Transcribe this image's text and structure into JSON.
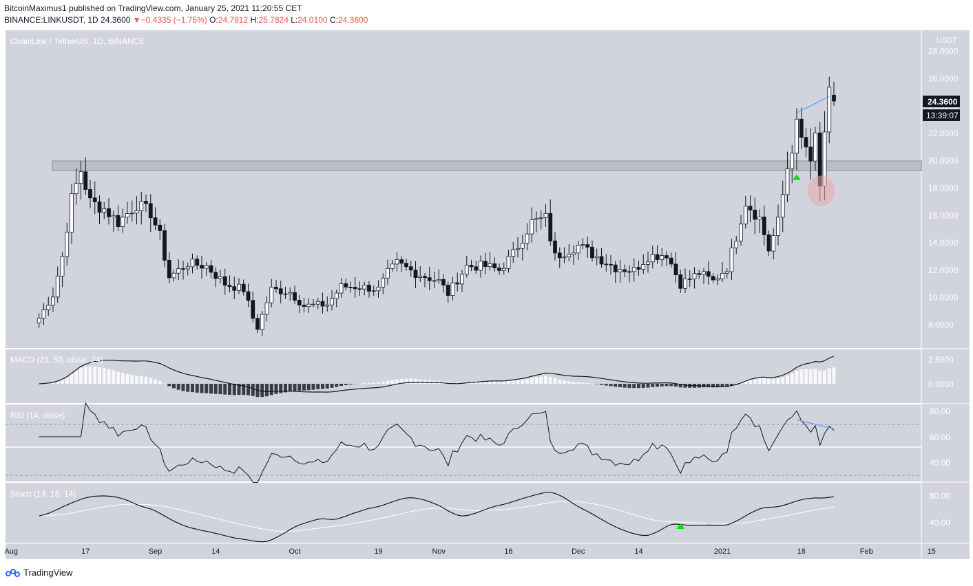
{
  "header": {
    "author": "BitcoinMaximus1",
    "published_text": "published on TradingView.com, January 25, 2021 11:20:55 CET",
    "symbol": "BINANCE:LINKUSDT, 1D",
    "last": "24.3600",
    "change_arrow": "▼",
    "change": "−0.4335 (−1.75%)",
    "o_label": "O:",
    "o_value": "24.7912",
    "h_label": "H:",
    "h_value": "25.7824",
    "l_label": "L:",
    "l_value": "24.0100",
    "c_label": "C:",
    "c_value": "24.3600"
  },
  "main_pane": {
    "title": "ChainLink / TetherUS, 1D, BINANCE",
    "currency": "USDT",
    "price_labels": [
      "28.0000",
      "26.0000",
      "24.0000",
      "22.0000",
      "20.0000",
      "18.0000",
      "16.0000",
      "14.0000",
      "12.0000",
      "10.0000",
      "8.0000"
    ],
    "last_price_label": "24.3600",
    "countdown_label": "13:39:07"
  },
  "macd_pane": {
    "title": "MACD (21, 50, close, 24)",
    "axis_labels": [
      "2.5000",
      "0.0000"
    ]
  },
  "rsi_pane": {
    "title": "RSI (14, close)",
    "axis_labels": [
      "80.00",
      "60.00",
      "40.00"
    ]
  },
  "stoch_pane": {
    "title": "Stoch (14, 18, 14)",
    "axis_labels": [
      "80.00",
      "40.00"
    ]
  },
  "time_axis": {
    "labels": [
      "Aug",
      "17",
      "Sep",
      "14",
      "Oct",
      "19",
      "Nov",
      "16",
      "Dec",
      "14",
      "2021",
      "18",
      "Feb",
      "15"
    ]
  },
  "footer": {
    "brand": "TradingView"
  },
  "colors": {
    "pane_bg": "#d1d4dc",
    "up": "#ffffff",
    "down": "#131722",
    "trendline": "#5b9cf6",
    "signal": "#00e600",
    "highlight": "#e8a8a8"
  },
  "chart_data": {
    "type": "candlestick",
    "title": "ChainLink / TetherUS, 1D, BINANCE",
    "y_unit": "USDT",
    "ylim": [
      7,
      29
    ],
    "anchors": [
      {
        "date": "2020-08-07",
        "close": 8.5
      },
      {
        "date": "2020-08-10",
        "close": 10.2
      },
      {
        "date": "2020-08-12",
        "close": 13.0
      },
      {
        "date": "2020-08-14",
        "close": 17.2
      },
      {
        "date": "2020-08-16",
        "close": 19.3
      },
      {
        "date": "2020-08-18",
        "close": 17.0
      },
      {
        "date": "2020-08-21",
        "close": 16.5
      },
      {
        "date": "2020-08-24",
        "close": 15.5
      },
      {
        "date": "2020-08-28",
        "close": 16.8
      },
      {
        "date": "2020-08-31",
        "close": 16.2
      },
      {
        "date": "2020-09-02",
        "close": 14.5
      },
      {
        "date": "2020-09-04",
        "close": 11.5
      },
      {
        "date": "2020-09-08",
        "close": 12.5
      },
      {
        "date": "2020-09-12",
        "close": 12.3
      },
      {
        "date": "2020-09-16",
        "close": 11.0
      },
      {
        "date": "2020-09-20",
        "close": 10.6
      },
      {
        "date": "2020-09-22",
        "close": 8.5
      },
      {
        "date": "2020-09-23",
        "close": 7.8
      },
      {
        "date": "2020-09-26",
        "close": 10.6
      },
      {
        "date": "2020-09-30",
        "close": 10.4
      },
      {
        "date": "2020-10-03",
        "close": 9.4
      },
      {
        "date": "2020-10-08",
        "close": 9.5
      },
      {
        "date": "2020-10-11",
        "close": 10.8
      },
      {
        "date": "2020-10-15",
        "close": 10.8
      },
      {
        "date": "2020-10-19",
        "close": 10.6
      },
      {
        "date": "2020-10-21",
        "close": 11.8
      },
      {
        "date": "2020-10-23",
        "close": 12.5
      },
      {
        "date": "2020-10-27",
        "close": 11.8
      },
      {
        "date": "2020-11-01",
        "close": 11.2
      },
      {
        "date": "2020-11-03",
        "close": 10.3
      },
      {
        "date": "2020-11-07",
        "close": 12.3
      },
      {
        "date": "2020-11-11",
        "close": 12.3
      },
      {
        "date": "2020-11-14",
        "close": 12.0
      },
      {
        "date": "2020-11-17",
        "close": 13.2
      },
      {
        "date": "2020-11-21",
        "close": 15.5
      },
      {
        "date": "2020-11-24",
        "close": 15.8
      },
      {
        "date": "2020-11-26",
        "close": 13.0
      },
      {
        "date": "2020-11-29",
        "close": 13.5
      },
      {
        "date": "2020-12-01",
        "close": 13.8
      },
      {
        "date": "2020-12-05",
        "close": 13.0
      },
      {
        "date": "2020-12-09",
        "close": 12.2
      },
      {
        "date": "2020-12-13",
        "close": 12.0
      },
      {
        "date": "2020-12-16",
        "close": 13.0
      },
      {
        "date": "2020-12-20",
        "close": 13.2
      },
      {
        "date": "2020-12-23",
        "close": 11.0
      },
      {
        "date": "2020-12-27",
        "close": 11.8
      },
      {
        "date": "2020-12-30",
        "close": 11.2
      },
      {
        "date": "2021-01-02",
        "close": 12.2
      },
      {
        "date": "2021-01-04",
        "close": 14.5
      },
      {
        "date": "2021-01-06",
        "close": 17.0
      },
      {
        "date": "2021-01-09",
        "close": 15.8
      },
      {
        "date": "2021-01-11",
        "close": 13.5
      },
      {
        "date": "2021-01-13",
        "close": 15.5
      },
      {
        "date": "2021-01-15",
        "close": 19.5
      },
      {
        "date": "2021-01-17",
        "close": 22.5
      },
      {
        "date": "2021-01-18",
        "close": 21.5
      },
      {
        "date": "2021-01-19",
        "close": 21.0
      },
      {
        "date": "2021-01-20",
        "close": 19.5
      },
      {
        "date": "2021-01-21",
        "close": 21.8
      },
      {
        "date": "2021-01-22",
        "close": 18.2
      },
      {
        "date": "2021-01-23",
        "close": 21.5
      },
      {
        "date": "2021-01-24",
        "close": 24.8
      },
      {
        "date": "2021-01-25",
        "close": 24.36
      }
    ],
    "last_candle": {
      "date": "2021-01-25",
      "open": 24.7912,
      "high": 25.7824,
      "low": 24.01,
      "close": 24.36
    },
    "resistance_zone": [
      19.3,
      20.0
    ],
    "annotations": [
      {
        "type": "trendline",
        "from": {
          "date": "2021-01-17",
          "price": 23.5
        },
        "to": {
          "date": "2021-01-24",
          "price": 24.7
        }
      },
      {
        "type": "signal-arrow",
        "date": "2021-01-17",
        "price": 18.8
      },
      {
        "type": "highlight-ellipse",
        "date": "2021-01-22",
        "price": 17.8
      }
    ],
    "rsi_trendline": {
      "from": {
        "date": "2021-01-17",
        "value": 73
      },
      "to": {
        "date": "2021-01-25",
        "value": 66
      }
    },
    "rsi_levels": [
      70,
      50,
      30
    ],
    "macd": {
      "last_line": 2.9
    },
    "stoch_signal": {
      "date": "2020-12-23"
    }
  }
}
